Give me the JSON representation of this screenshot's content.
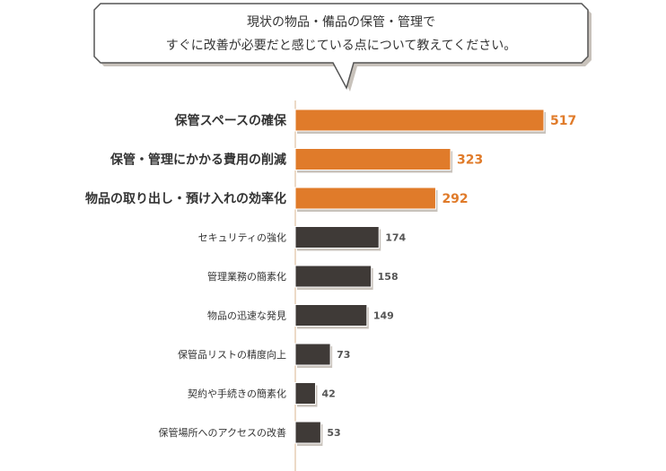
{
  "question": {
    "line1": "現状の物品・備品の保管・管理で",
    "line2": "すぐに改善が必要だと感じている点について教えてください。"
  },
  "colors": {
    "highlight": "#e07b2a",
    "normal": "#3f3a37",
    "axis": "#d9b48f",
    "bubble_border": "#555555",
    "bubble_shadow": "#c8c2bb"
  },
  "chart_data": {
    "type": "bar",
    "orientation": "horizontal",
    "title": "",
    "xlabel": "",
    "ylabel": "",
    "xlim": [
      0,
      545
    ],
    "grid": false,
    "legend": "none",
    "categories": [
      "保管スペースの確保",
      "保管・管理にかかる費用の削減",
      "物品の取り出し・預け入れの効率化",
      "セキュリティの強化",
      "管理業務の簡素化",
      "物品の迅速な発見",
      "保管品リストの精度向上",
      "契約や手続きの簡素化",
      "保管場所へのアクセスの改善"
    ],
    "values": [
      517,
      323,
      292,
      174,
      158,
      149,
      73,
      42,
      53
    ],
    "highlighted": [
      true,
      true,
      true,
      false,
      false,
      false,
      false,
      false,
      false
    ]
  }
}
